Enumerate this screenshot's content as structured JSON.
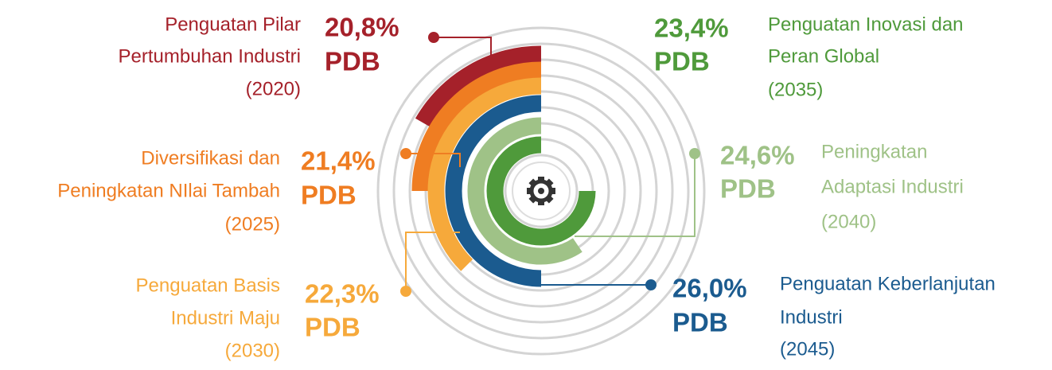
{
  "items": [
    {
      "lines": [
        "Penguatan Pilar",
        "Pertumbuhan Industri",
        "(2020)"
      ],
      "value": "20,8%",
      "unit": "PDB",
      "color": "#a5212a"
    },
    {
      "lines": [
        "Diversifikasi dan",
        "Peningkatan NIlai Tambah",
        "(2025)"
      ],
      "value": "21,4%",
      "unit": "PDB",
      "color": "#ef7d22"
    },
    {
      "lines": [
        "Penguatan Basis",
        "Industri Maju",
        "(2030)"
      ],
      "value": "22,3%",
      "unit": "PDB",
      "color": "#f6a93b"
    },
    {
      "lines": [
        "Penguatan Inovasi dan",
        "Peran Global",
        "(2035)"
      ],
      "value": "23,4%",
      "unit": "PDB",
      "color": "#4f9a3b"
    },
    {
      "lines": [
        "Peningkatan",
        "Adaptasi Industri",
        "(2040)"
      ],
      "value": "24,6%",
      "unit": "PDB",
      "color": "#9fc287"
    },
    {
      "lines": [
        "Penguatan Keberlanjutan",
        "Industri",
        "(2045)"
      ],
      "value": "26,0%",
      "unit": "PDB",
      "color": "#1b5b8f"
    }
  ]
}
